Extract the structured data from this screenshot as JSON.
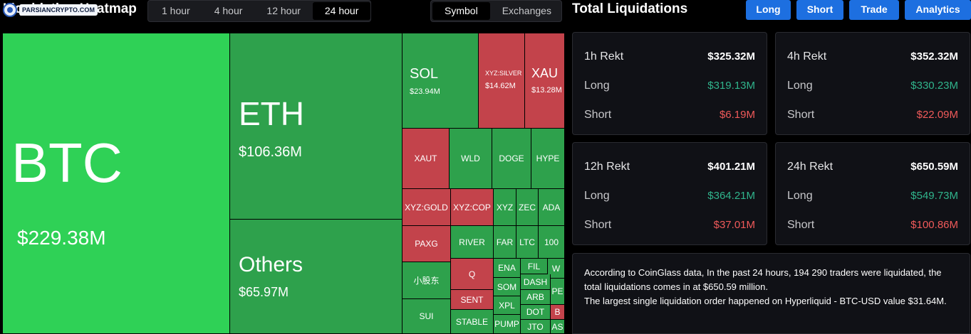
{
  "header": {
    "title": "Liquidation Heatmap",
    "watermark": "PARSIANCRYPTO.COM",
    "time_options": [
      "1 hour",
      "4 hour",
      "12 hour",
      "24 hour"
    ],
    "active_time": "24 hour",
    "view_options": [
      "Symbol",
      "Exchanges"
    ],
    "active_view": "Symbol",
    "total_title": "Total Liquidations",
    "nav_buttons": [
      "Long",
      "Short",
      "Trade",
      "Analytics"
    ]
  },
  "heatmap": {
    "btc": {
      "symbol": "BTC",
      "value": "$229.38M"
    },
    "eth": {
      "symbol": "ETH",
      "value": "$106.36M"
    },
    "others": {
      "symbol": "Others",
      "value": "$65.97M"
    },
    "sol": {
      "symbol": "SOL",
      "value": "$23.94M"
    },
    "silver": {
      "symbol": "XYZ:SILVER",
      "value": "$14.62M"
    },
    "xau": {
      "symbol": "XAU",
      "value": "$13.28M"
    },
    "small": [
      "XAUT",
      "WLD",
      "DOGE",
      "HYPE",
      "XYZ:GOLD",
      "XYZ:COP",
      "XYZ",
      "ZEC",
      "ADA",
      "PAXG",
      "RIVER",
      "FAR",
      "LTC",
      "100",
      "小股东",
      "Q",
      "ENA",
      "FIL",
      "W",
      "DASH",
      "SOM",
      "ARB",
      "PE",
      "SENT",
      "XPL",
      "DOT",
      "B",
      "SUI",
      "STABLE",
      "PUMP",
      "JTO",
      "AS"
    ]
  },
  "stats": [
    {
      "title": "1h Rekt",
      "total": "$325.32M",
      "long_label": "Long",
      "long": "$319.13M",
      "short_label": "Short",
      "short": "$6.19M"
    },
    {
      "title": "4h Rekt",
      "total": "$352.32M",
      "long_label": "Long",
      "long": "$330.23M",
      "short_label": "Short",
      "short": "$22.09M"
    },
    {
      "title": "12h Rekt",
      "total": "$401.21M",
      "long_label": "Long",
      "long": "$364.21M",
      "short_label": "Short",
      "short": "$37.01M"
    },
    {
      "title": "24h Rekt",
      "total": "$650.59M",
      "long_label": "Long",
      "long": "$549.73M",
      "short_label": "Short",
      "short": "$100.86M"
    }
  ],
  "summary": {
    "line1": "According to CoinGlass data, In the past 24 hours, 194 290 traders were liquidated, the total liquidations comes in at $650.59 million.",
    "line2": "The largest single liquidation order happened on Hyperliquid - BTC-USD value $31.64M."
  },
  "colors": {
    "long": "#30b48c",
    "short": "#f05a5a",
    "accent": "#1d6fe0",
    "tile_green": "#2ea14c",
    "tile_bright_green": "#2fd156",
    "tile_red": "#c3434b"
  }
}
